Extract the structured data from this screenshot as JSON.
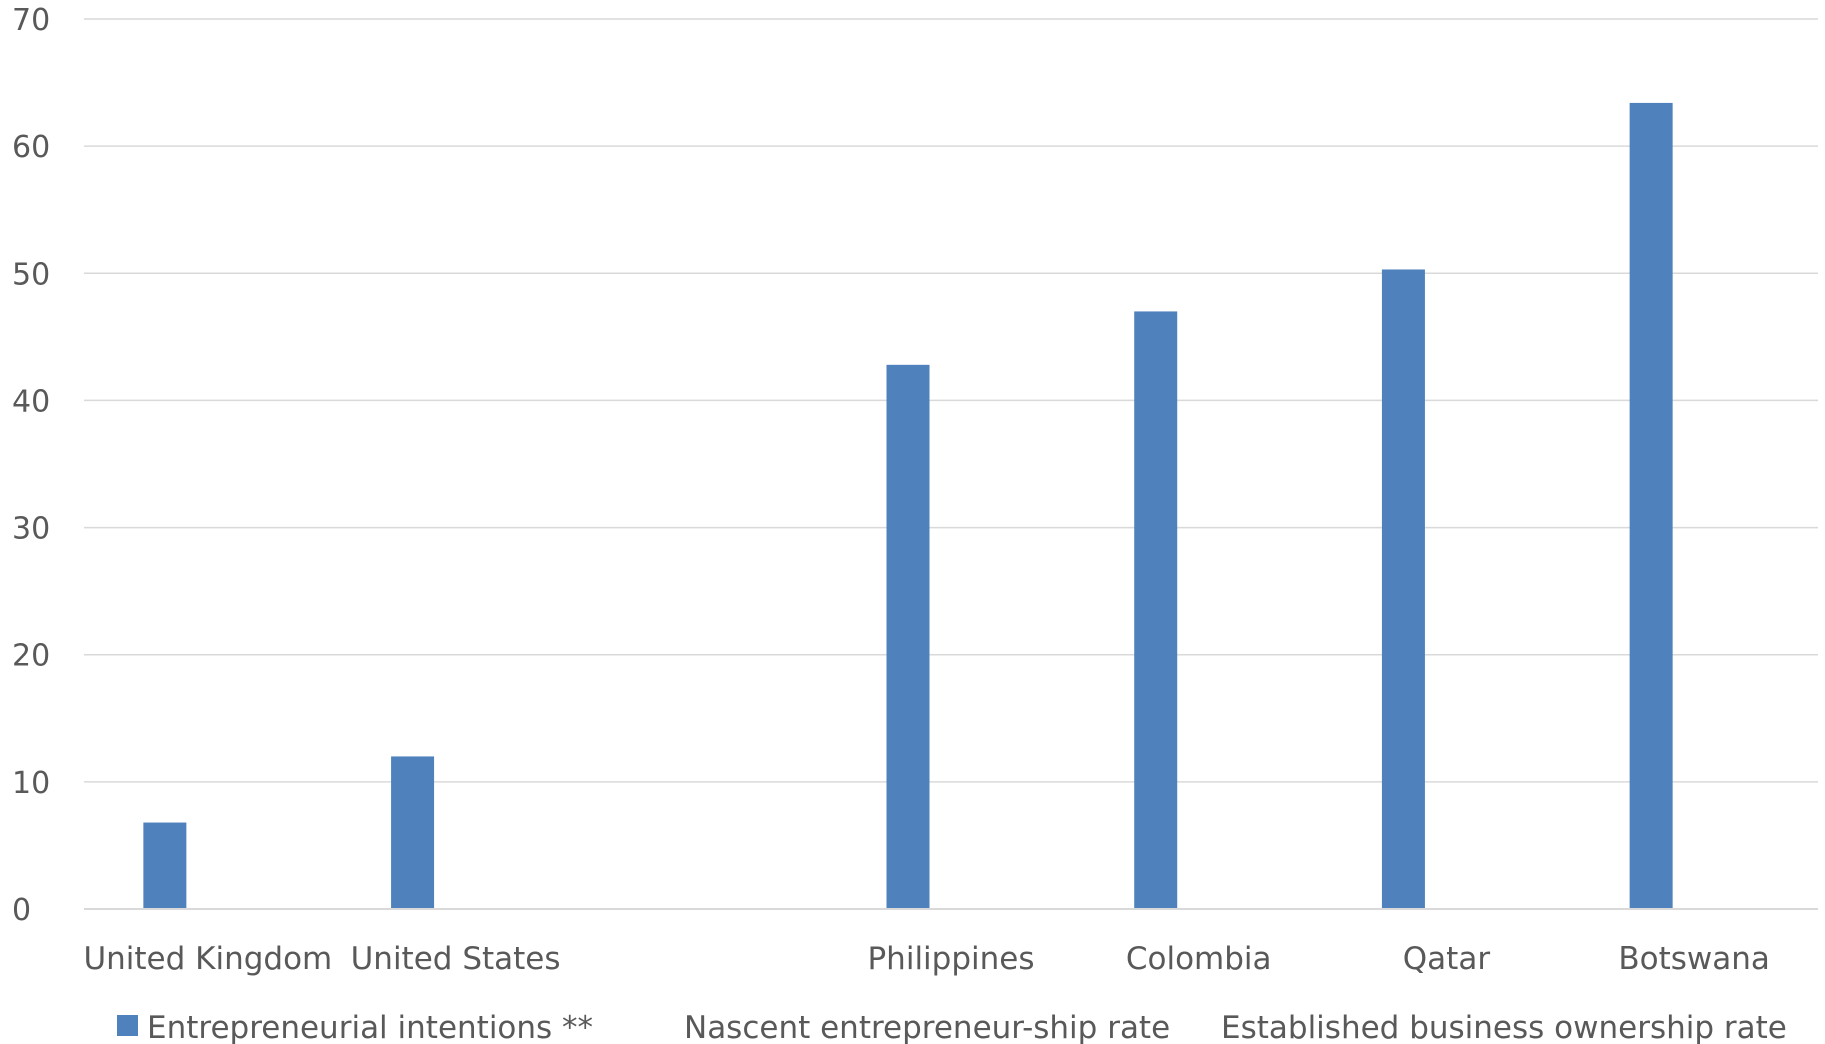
{
  "chart_data": {
    "type": "bar",
    "title": "",
    "xlabel": "",
    "ylabel": "",
    "categories": [
      "United Kingdom",
      "United States",
      "",
      "Philippines",
      "Colombia",
      "Qatar",
      "Botswana"
    ],
    "ylim": [
      0,
      70
    ],
    "yticks": [
      0,
      10,
      20,
      30,
      40,
      50,
      60,
      70
    ],
    "grid": true,
    "legend_position": "bottom",
    "series": [
      {
        "name": "Entrepreneurial intentions **",
        "color": "#4F81BD",
        "values": [
          6.8,
          12.0,
          null,
          42.8,
          47.0,
          50.3,
          63.4
        ]
      },
      {
        "name": "Nascent entrepreneur-ship rate",
        "color": "#C0504D",
        "values": [
          null,
          null,
          null,
          null,
          null,
          null,
          null
        ]
      },
      {
        "name": "Established business ownership rate",
        "color": "#9BBB59",
        "values": [
          null,
          null,
          null,
          null,
          null,
          null,
          null
        ]
      }
    ]
  }
}
